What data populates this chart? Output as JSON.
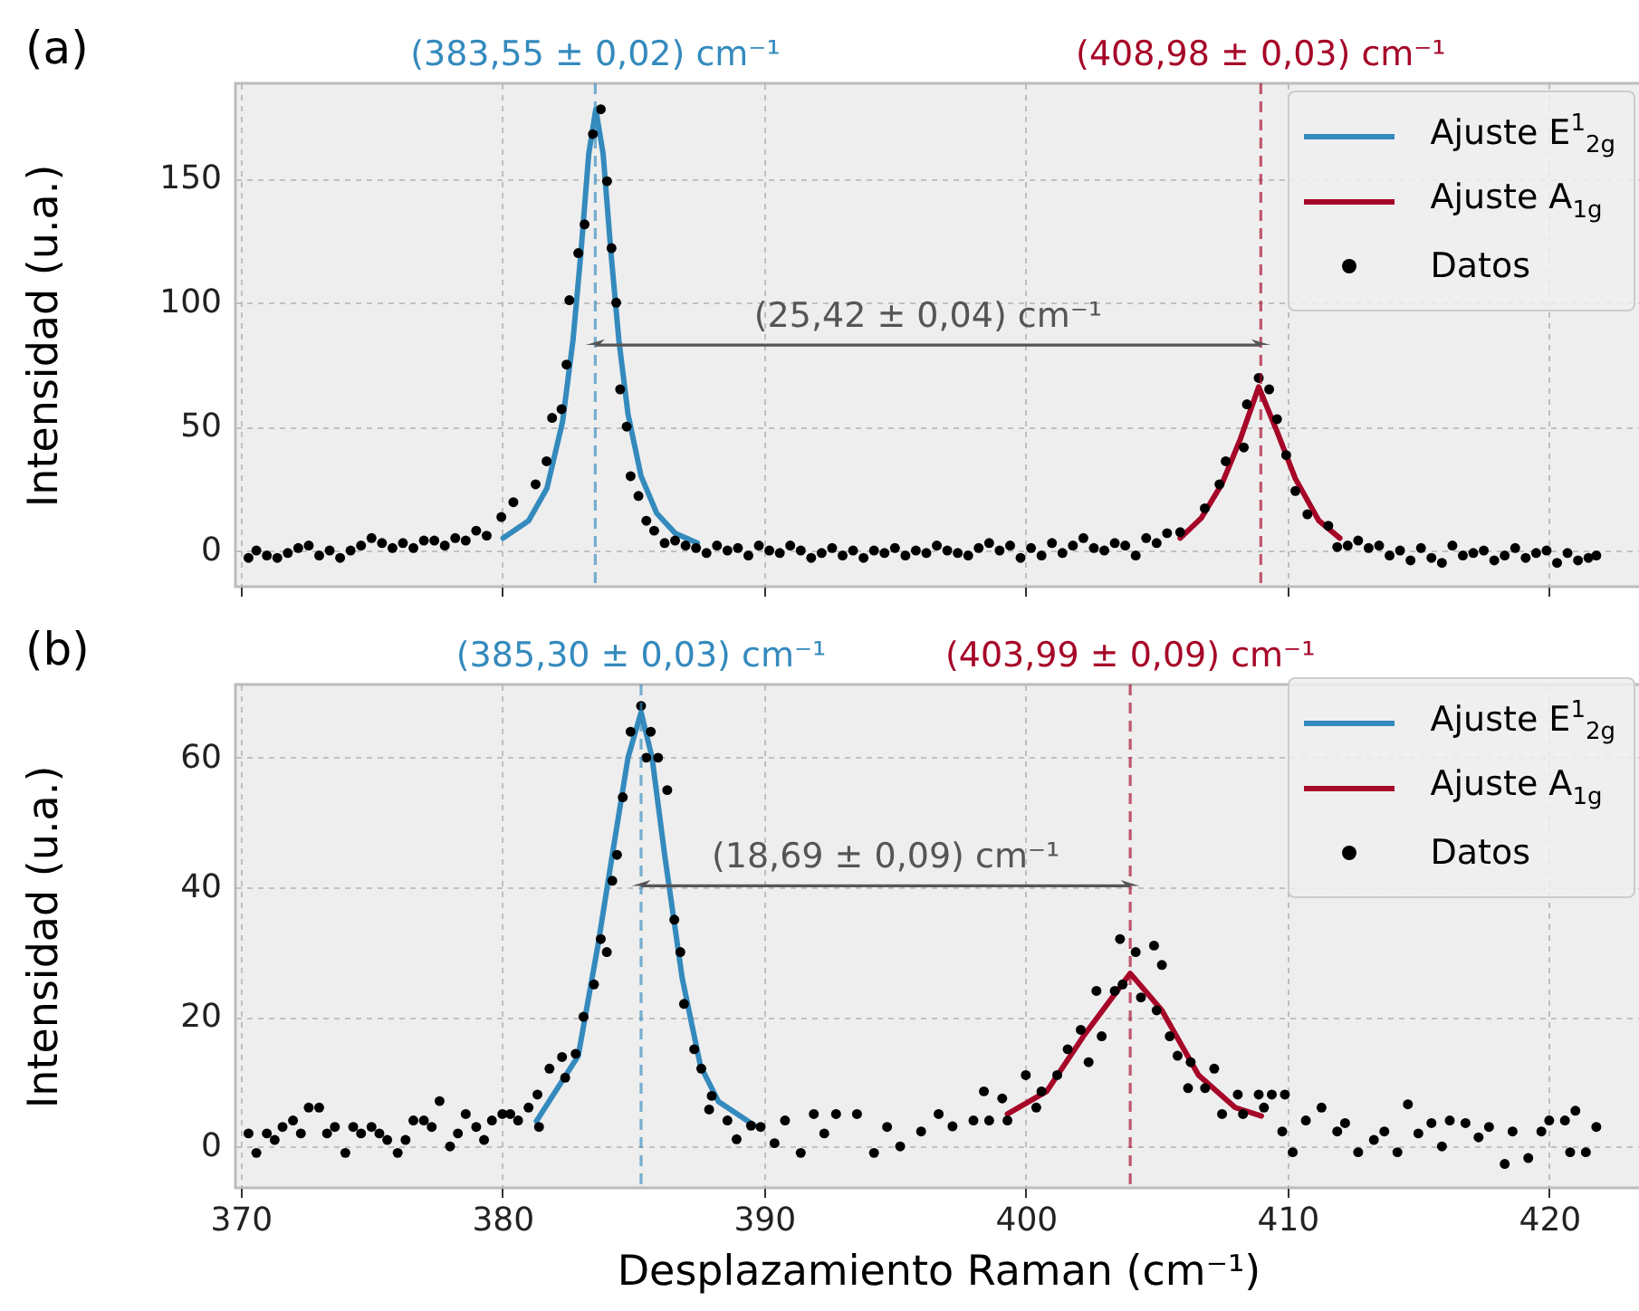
{
  "chart_data": [
    {
      "type": "scatter",
      "title": "(a)",
      "ylabel": "Intensidad (u.a.)",
      "xlim": [
        369.8,
        423.5
      ],
      "xticks": [
        370,
        380,
        390,
        400,
        410,
        420
      ],
      "ylim": [
        -14.6,
        188.5
      ],
      "yticks": [
        0,
        50,
        100,
        150
      ],
      "tick_labels": "y",
      "grid": true,
      "legend": "top right",
      "series": [
        {
          "name": "Ajuste E$^{1}$$_{2g}$",
          "type": "line",
          "color": "#348abd",
          "x": [
            380.03,
            381.0,
            381.7,
            382.3,
            382.7,
            383.0,
            383.3,
            383.57,
            383.85,
            384.15,
            384.45,
            384.8,
            385.3,
            385.9,
            386.6,
            387.45
          ],
          "values": [
            5,
            12,
            25,
            52,
            85,
            120,
            160,
            178,
            160,
            120,
            85,
            55,
            30,
            15,
            7,
            3
          ]
        },
        {
          "name": "Ajuste A$_{1g}$",
          "type": "line",
          "color": "#a60628",
          "x": [
            405.9,
            406.7,
            407.5,
            408.2,
            408.9,
            409.6,
            410.3,
            411.2,
            412.0
          ],
          "values": [
            5,
            13,
            27,
            45,
            66,
            48,
            29,
            12,
            5
          ]
        },
        {
          "name": "Datos",
          "type": "scatter",
          "marker": "circle",
          "color": "#000000",
          "x": [
            370.3,
            370.6,
            371,
            371.4,
            371.8,
            372.2,
            372.6,
            373,
            373.4,
            373.8,
            374.2,
            374.6,
            375,
            375.4,
            375.8,
            376.2,
            376.6,
            377,
            377.4,
            377.8,
            378.2,
            378.6,
            379,
            379.4,
            379.96,
            380.42,
            381.27,
            381.69,
            381.9,
            382.26,
            382.45,
            382.56,
            382.9,
            383.14,
            383.46,
            383.76,
            384.0,
            384.17,
            384.35,
            384.5,
            384.75,
            384.9,
            385.2,
            385.5,
            385.8,
            386.2,
            386.6,
            387,
            387.4,
            387.8,
            388.2,
            388.6,
            389,
            389.4,
            389.8,
            390.2,
            390.6,
            391,
            391.4,
            391.8,
            392.2,
            392.6,
            393,
            393.4,
            393.8,
            394.2,
            394.6,
            395,
            395.4,
            395.8,
            396.2,
            396.6,
            397,
            397.4,
            397.8,
            398.2,
            398.6,
            399,
            399.4,
            399.8,
            400.2,
            400.6,
            401,
            401.4,
            401.8,
            402.2,
            402.6,
            403,
            403.4,
            403.8,
            404.2,
            404.6,
            405,
            405.4,
            405.9,
            406.84,
            407.4,
            407.64,
            408.33,
            408.45,
            408.9,
            409.3,
            409.6,
            409.95,
            410.3,
            410.76,
            411.56,
            411.9,
            412.3,
            412.7,
            413.1,
            413.5,
            413.9,
            414.3,
            414.7,
            415.1,
            415.5,
            415.9,
            416.3,
            416.7,
            417.1,
            417.5,
            417.9,
            418.3,
            418.7,
            419.1,
            419.5,
            419.9,
            420.3,
            420.7,
            421.1,
            421.5,
            421.8
          ],
          "values": [
            -3,
            0,
            -2,
            -3,
            -1,
            1,
            2,
            -2,
            0,
            -3,
            0,
            2,
            5,
            3,
            1,
            3,
            1,
            4,
            4,
            2,
            5,
            4,
            8,
            6,
            13.5,
            19.5,
            26.7,
            36,
            53.5,
            57,
            75,
            101,
            120,
            131.6,
            168,
            178,
            149,
            122,
            100,
            65,
            50,
            30,
            22,
            12,
            8,
            3,
            4,
            2,
            1,
            -1,
            2,
            0,
            1,
            -2,
            2,
            0,
            -1,
            2,
            0,
            -3,
            -1,
            1,
            -2,
            0,
            -3,
            0,
            -1,
            1,
            -2,
            0,
            -1,
            2,
            0,
            -1,
            -2,
            1,
            3,
            0,
            2,
            -3,
            1,
            -2,
            3,
            -1,
            2,
            5,
            1,
            0,
            3,
            2,
            -2,
            5,
            3,
            7,
            7.4,
            17,
            26.7,
            36,
            41.6,
            59,
            69.6,
            65,
            53,
            38.5,
            24,
            14.6,
            10,
            1.4,
            2,
            4,
            1,
            2,
            -2,
            0,
            -4,
            1,
            -3,
            -5,
            2,
            -2,
            -1,
            0,
            -4,
            -2,
            1,
            -3,
            -1,
            0,
            -5,
            -1,
            -4,
            -3,
            -2
          ]
        }
      ],
      "ref_lines": [
        {
          "axis": "x",
          "value": 383.55,
          "label": "(383,55 ± 0,02) cm⁻¹",
          "color": "#348abd",
          "line_style": "dashed"
        },
        {
          "axis": "x",
          "value": 408.98,
          "label": "(408,98 ± 0,03) cm⁻¹",
          "color": "#a60628",
          "line_style": "dashed"
        }
      ],
      "annotations": [
        "(25,42 ± 0,04) cm⁻¹"
      ]
    },
    {
      "type": "scatter",
      "title": "(b)",
      "xlabel": "Desplazamiento Raman (cm⁻¹)",
      "ylabel": "Intensidad (u.a.)",
      "xlim": [
        369.8,
        423.5
      ],
      "xticks": [
        370,
        380,
        390,
        400,
        410,
        420
      ],
      "ylim": [
        -6.4,
        71.3
      ],
      "yticks": [
        0,
        20,
        40,
        60
      ],
      "grid": true,
      "legend": "top right",
      "series": [
        {
          "name": "Ajuste E$^{1}$$_{2g}$",
          "type": "line",
          "color": "#348abd",
          "x": [
            381.3,
            382.9,
            383.65,
            384.2,
            384.8,
            385.3,
            385.72,
            386.2,
            386.87,
            387.57,
            388.26,
            389.64
          ],
          "values": [
            3.9,
            14,
            31,
            45,
            60,
            67,
            60,
            45,
            26,
            12.4,
            6.9,
            3.2
          ]
        },
        {
          "name": "Ajuste A$_{1g}$",
          "type": "line",
          "color": "#a60628",
          "x": [
            399.3,
            400.8,
            402.2,
            403.99,
            405.2,
            406.6,
            408.0,
            409.0
          ],
          "values": [
            5,
            8.5,
            17,
            26.7,
            21,
            11,
            6,
            4.7
          ]
        },
        {
          "name": "Datos",
          "type": "scatter",
          "marker": "circle",
          "color": "#000000",
          "x": [
            370.3,
            370.6,
            371,
            371.3,
            371.6,
            372,
            372.3,
            372.6,
            373,
            373.3,
            373.6,
            374,
            374.3,
            374.6,
            375,
            375.3,
            375.6,
            376,
            376.3,
            376.6,
            377,
            377.3,
            377.6,
            378,
            378.3,
            378.6,
            379,
            379.3,
            379.6,
            380,
            380.3,
            380.6,
            381,
            381.34,
            381.4,
            381.8,
            382.28,
            382.4,
            382.8,
            383.1,
            383.5,
            383.76,
            383.99,
            384.2,
            384.38,
            384.6,
            384.9,
            385.3,
            385.5,
            385.67,
            385.95,
            386.3,
            386.57,
            386.8,
            386.94,
            387.33,
            387.6,
            387.9,
            388.0,
            388.6,
            388.95,
            389.5,
            389.87,
            390.4,
            390.8,
            391.4,
            391.9,
            392.3,
            392.75,
            393.55,
            394.2,
            394.7,
            395.2,
            396.0,
            396.67,
            397.2,
            398.0,
            398.4,
            398.6,
            399.1,
            399.3,
            400.0,
            400.4,
            400.6,
            401.2,
            401.6,
            402.1,
            402.4,
            402.7,
            402.9,
            403.4,
            403.6,
            403.7,
            404.2,
            404.4,
            404.9,
            405.0,
            405.2,
            405.5,
            405.8,
            406.2,
            406.3,
            406.85,
            407.2,
            407.5,
            408.1,
            408.3,
            408.9,
            409.1,
            409.4,
            409.8,
            409.9,
            410.2,
            410.7,
            411.3,
            411.9,
            412.2,
            412.7,
            413.3,
            413.7,
            414.2,
            414.6,
            415.0,
            415.5,
            415.9,
            416.2,
            416.8,
            417.3,
            417.7,
            418.3,
            418.6,
            419.2,
            419.7,
            420.0,
            420.6,
            420.8,
            421.0,
            421.4,
            421.8
          ],
          "values": [
            2,
            -1,
            2,
            1,
            3,
            4,
            2,
            6,
            6,
            2,
            3,
            -1,
            3,
            2,
            3,
            2,
            1,
            -1,
            1,
            4,
            4,
            3,
            7,
            0,
            2,
            5,
            3,
            1,
            4,
            5,
            5,
            4,
            6,
            8,
            3,
            12,
            13.8,
            10.6,
            14.3,
            20,
            25,
            32,
            30,
            41,
            45,
            53.9,
            64,
            68,
            60,
            64,
            60,
            55,
            35,
            30,
            22,
            15,
            12,
            5.7,
            7.8,
            4,
            1.1,
            3.2,
            3,
            0.5,
            4,
            -1,
            5,
            2,
            5,
            5,
            -1,
            3,
            0,
            2.3,
            5,
            3.1,
            4,
            8.5,
            4,
            7.4,
            4,
            11,
            6,
            8.5,
            11,
            15,
            18,
            13,
            24,
            17,
            24,
            32,
            25,
            30,
            23,
            31,
            21,
            28,
            17,
            14,
            9,
            13,
            9,
            12,
            5,
            8,
            5,
            8,
            6,
            8,
            2.3,
            8,
            -0.9,
            4,
            6,
            2.3,
            3.6,
            -0.9,
            1,
            2.3,
            -0.9,
            6.5,
            2,
            3.6,
            0,
            4,
            3.6,
            1.4,
            3,
            -2.7,
            2.3,
            -1.8,
            2.3,
            4,
            4,
            -0.9,
            5.5,
            -0.9,
            3
          ]
        }
      ],
      "ref_lines": [
        {
          "axis": "x",
          "value": 385.3,
          "label": "(385,30 ± 0,03) cm⁻¹",
          "color": "#348abd",
          "line_style": "dashed"
        },
        {
          "axis": "x",
          "value": 403.99,
          "label": "(403,99 ± 0,09) cm⁻¹",
          "color": "#a60628",
          "line_style": "dashed"
        }
      ],
      "annotations": [
        "(18,69 ± 0,09) cm⁻¹"
      ]
    }
  ]
}
